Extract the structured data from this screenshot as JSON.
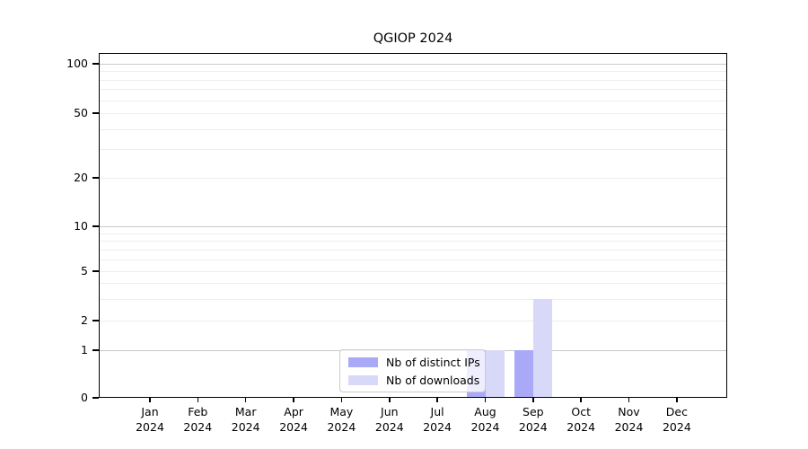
{
  "chart_data": {
    "type": "bar",
    "title": "QGIOP 2024",
    "year": "2024",
    "categories": [
      "Jan",
      "Feb",
      "Mar",
      "Apr",
      "May",
      "Jun",
      "Jul",
      "Aug",
      "Sep",
      "Oct",
      "Nov",
      "Dec"
    ],
    "series": [
      {
        "name": "Nb of distinct IPs",
        "color": "#a9a9f7",
        "values": [
          0,
          0,
          0,
          0,
          0,
          0,
          0,
          1,
          1,
          0,
          0,
          0
        ]
      },
      {
        "name": "Nb of downloads",
        "color": "#d8d8f9",
        "values": [
          0,
          0,
          0,
          0,
          0,
          0,
          0,
          1,
          3,
          0,
          0,
          0
        ]
      }
    ],
    "y_ticks": [
      0,
      1,
      2,
      5,
      10,
      20,
      50,
      100
    ],
    "y_minor_ticks": [
      3,
      4,
      6,
      7,
      8,
      9,
      30,
      40,
      60,
      70,
      80,
      90
    ],
    "ylim": [
      0,
      100
    ],
    "yscale": "log-like",
    "grid": true,
    "legend_position": "bottom-center",
    "colors": {
      "grid_major": "#c9c9c9",
      "grid_minor": "#ededed",
      "axis": "#000000",
      "legend_border": "#cbcbcb"
    }
  }
}
